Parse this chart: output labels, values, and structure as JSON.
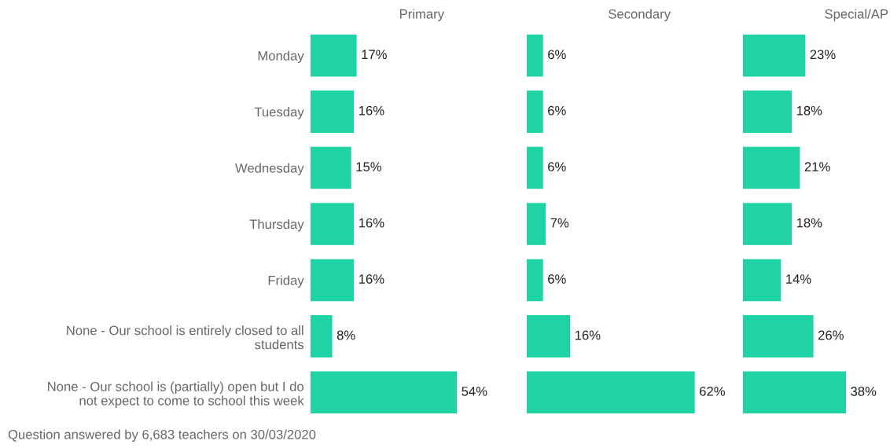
{
  "chart_data": [
    {
      "type": "bar",
      "orientation": "horizontal",
      "title": "Primary",
      "tick_labels": "y",
      "categories": [
        "Monday",
        "Tuesday",
        "Wednesday",
        "Thursday",
        "Friday",
        "None - Our school is entirely closed to all\nstudents",
        "None - Our school is (partially) open but I do\nnot expect to come to school this week"
      ],
      "values": [
        17,
        16,
        15,
        16,
        16,
        8,
        54
      ],
      "color": "#20d3a7",
      "value_labels": [
        "17%",
        "16%",
        "15%",
        "16%",
        "16%",
        "8%",
        "54%"
      ],
      "annotations": [
        "Question answered by 6,683 teachers on 30/03/2020"
      ]
    },
    {
      "type": "bar",
      "orientation": "horizontal",
      "title": "Secondary",
      "tick_labels": false,
      "categories": [
        null,
        null,
        null,
        null,
        null,
        null,
        null
      ],
      "values": [
        6,
        6,
        6,
        7,
        6,
        16,
        62
      ],
      "color": "#20d3a7",
      "value_labels": [
        "6%",
        "6%",
        "6%",
        "7%",
        "6%",
        "16%",
        "62%"
      ]
    },
    {
      "type": "bar",
      "orientation": "horizontal",
      "title": "Special/AP",
      "tick_labels": false,
      "categories": [
        null,
        null,
        null,
        null,
        null,
        null,
        null
      ],
      "values": [
        23,
        18,
        21,
        18,
        14,
        26,
        38
      ],
      "color": "#20d3a7",
      "value_labels": [
        "23%",
        "18%",
        "21%",
        "18%",
        "14%",
        "26%",
        "38%"
      ]
    }
  ]
}
